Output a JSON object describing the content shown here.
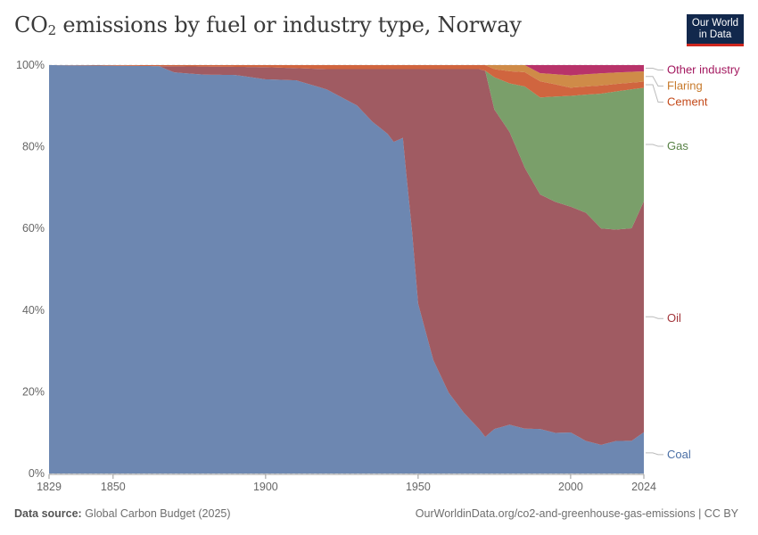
{
  "header": {
    "title_main": "CO",
    "title_sub": "2",
    "title_rest": " emissions by fuel or industry type, Norway",
    "logo_line1": "Our World",
    "logo_line2": "in Data"
  },
  "footer": {
    "source_label": "Data source:",
    "source_text": "Global Carbon Budget (2025)",
    "url_text": "OurWorldinData.org/co2-and-greenhouse-gas-emissions | CC BY"
  },
  "chart_data": {
    "type": "area",
    "stacked": true,
    "normalized_percent": true,
    "x_ticks": [
      1829,
      1850,
      1900,
      1950,
      2000,
      2024
    ],
    "y_ticks": [
      0,
      20,
      40,
      60,
      80,
      100
    ],
    "y_tick_labels": [
      "0%",
      "20%",
      "40%",
      "60%",
      "80%",
      "100%"
    ],
    "xlim": [
      1829,
      2024
    ],
    "ylim": [
      0,
      100
    ],
    "grid": "horizontal dotted",
    "legend_placement": "right, inline labels",
    "series_order_bottom_to_top": [
      "Coal",
      "Oil",
      "Gas",
      "Cement",
      "Flaring",
      "Other industry"
    ],
    "series": [
      {
        "name": "Coal",
        "color": "#6d87b1",
        "label_color": "#4a6fa5",
        "points": [
          [
            1829,
            100
          ],
          [
            1865,
            100
          ],
          [
            1870,
            98.5
          ],
          [
            1880,
            98
          ],
          [
            1890,
            98
          ],
          [
            1900,
            97
          ],
          [
            1910,
            97
          ],
          [
            1915,
            96
          ],
          [
            1920,
            95
          ],
          [
            1925,
            93
          ],
          [
            1930,
            91
          ],
          [
            1935,
            87
          ],
          [
            1940,
            84
          ],
          [
            1942,
            82
          ],
          [
            1945,
            83
          ],
          [
            1946,
            75
          ],
          [
            1948,
            60
          ],
          [
            1950,
            42
          ],
          [
            1955,
            28
          ],
          [
            1960,
            20
          ],
          [
            1965,
            15
          ],
          [
            1970,
            11
          ],
          [
            1972,
            9
          ],
          [
            1975,
            11
          ],
          [
            1980,
            12
          ],
          [
            1985,
            11
          ],
          [
            1990,
            11
          ],
          [
            1995,
            10
          ],
          [
            2000,
            10
          ],
          [
            2005,
            8
          ],
          [
            2010,
            7
          ],
          [
            2015,
            8
          ],
          [
            2020,
            8
          ],
          [
            2024,
            10
          ]
        ]
      },
      {
        "name": "Oil",
        "color": "#a05b62",
        "label_color": "#a2353a",
        "points": [
          [
            1829,
            0
          ],
          [
            1865,
            0
          ],
          [
            1870,
            1.5
          ],
          [
            1880,
            2
          ],
          [
            1890,
            2
          ],
          [
            1900,
            3
          ],
          [
            1910,
            3
          ],
          [
            1915,
            4
          ],
          [
            1920,
            5
          ],
          [
            1925,
            7
          ],
          [
            1930,
            9
          ],
          [
            1935,
            13
          ],
          [
            1940,
            16
          ],
          [
            1942,
            18
          ],
          [
            1945,
            17
          ],
          [
            1946,
            25
          ],
          [
            1948,
            40
          ],
          [
            1950,
            58
          ],
          [
            1955,
            72
          ],
          [
            1960,
            80
          ],
          [
            1965,
            85
          ],
          [
            1970,
            89
          ],
          [
            1972,
            90
          ],
          [
            1975,
            79
          ],
          [
            1980,
            72
          ],
          [
            1985,
            64
          ],
          [
            1990,
            58
          ],
          [
            1995,
            57
          ],
          [
            2000,
            55
          ],
          [
            2005,
            56
          ],
          [
            2010,
            53
          ],
          [
            2015,
            52
          ],
          [
            2020,
            52
          ],
          [
            2024,
            56
          ]
        ]
      },
      {
        "name": "Gas",
        "color": "#7a9f6a",
        "label_color": "#578145",
        "points": [
          [
            1829,
            0
          ],
          [
            1972,
            0
          ],
          [
            1975,
            8
          ],
          [
            1980,
            12
          ],
          [
            1985,
            20
          ],
          [
            1990,
            24
          ],
          [
            1995,
            26
          ],
          [
            2000,
            27
          ],
          [
            2005,
            29
          ],
          [
            2010,
            33
          ],
          [
            2015,
            34
          ],
          [
            2020,
            34
          ],
          [
            2024,
            27.5
          ]
        ]
      },
      {
        "name": "Cement",
        "color": "#d0653f",
        "label_color": "#c44a1a",
        "points": [
          [
            1829,
            0
          ],
          [
            1900,
            0.5
          ],
          [
            1920,
            1
          ],
          [
            1950,
            1
          ],
          [
            1960,
            1
          ],
          [
            1970,
            1
          ],
          [
            1975,
            2
          ],
          [
            1980,
            3
          ],
          [
            1990,
            4
          ],
          [
            2000,
            2
          ],
          [
            2010,
            2
          ],
          [
            2024,
            1.5
          ]
        ]
      },
      {
        "name": "Flaring",
        "color": "#cf8b48",
        "label_color": "#c77a2b",
        "points": [
          [
            1829,
            0
          ],
          [
            1972,
            0
          ],
          [
            1975,
            1
          ],
          [
            1980,
            1.5
          ],
          [
            1990,
            2
          ],
          [
            2000,
            3
          ],
          [
            2010,
            3
          ],
          [
            2024,
            2.5
          ]
        ]
      },
      {
        "name": "Other industry",
        "color": "#b8336a",
        "label_color": "#a3185f",
        "points": [
          [
            1829,
            0
          ],
          [
            1985,
            0
          ],
          [
            1990,
            2
          ],
          [
            2000,
            2.5
          ],
          [
            2010,
            2
          ],
          [
            2024,
            1.5
          ]
        ]
      }
    ]
  }
}
